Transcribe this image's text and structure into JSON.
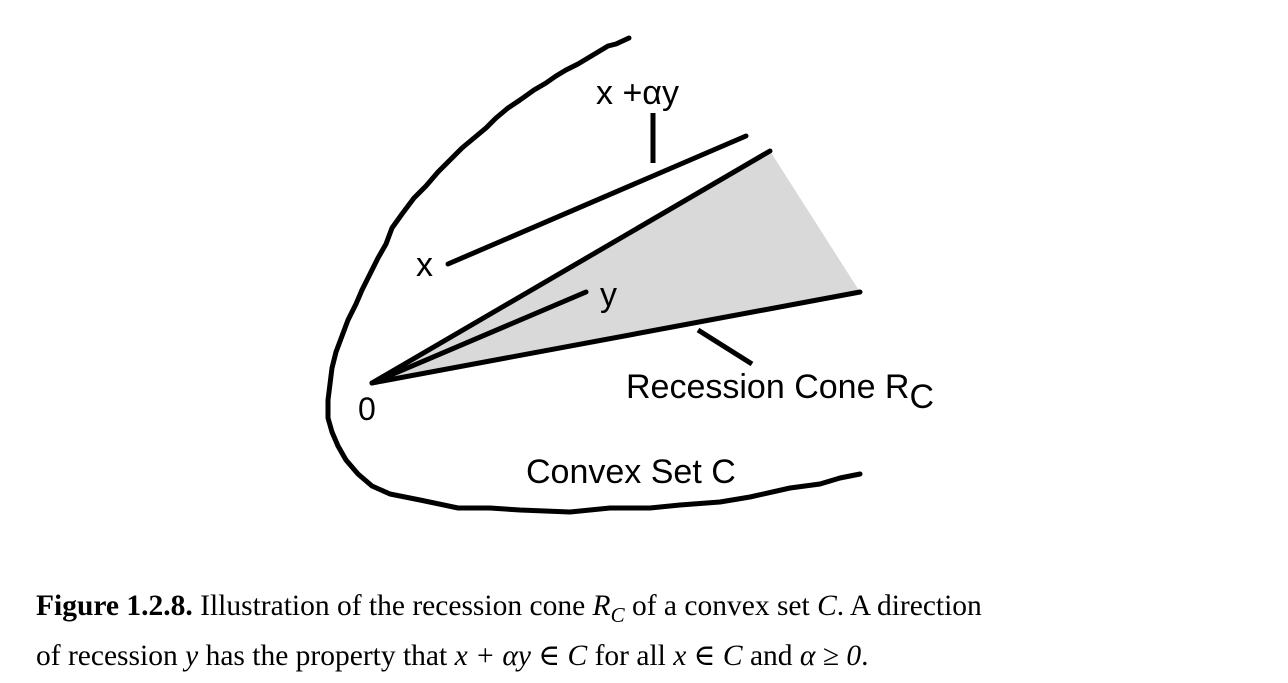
{
  "figure": {
    "labels": {
      "x_plus_alpha_y": "x +αy",
      "x": "x",
      "y": "y",
      "origin": "0",
      "recession_cone_main": "Recession Cone R",
      "recession_cone_sub": "C",
      "convex_set": "Convex Set C"
    },
    "colors": {
      "cone_fill": "#d9d9d9",
      "stroke": "#000000"
    }
  },
  "caption": {
    "figure_number": "Figure 1.2.8.",
    "line1_text1": " Illustration of the recession cone ",
    "rc_main": "R",
    "rc_sub": "C",
    "line1_text2": " of a convex set ",
    "set_c": "C",
    "line1_text3": ". A direction",
    "line2_text1": "of recession ",
    "dir_y": "y",
    "line2_text2": " has the property that ",
    "math_membership": "x + αy ∈ C",
    "line2_text3": " for all ",
    "math_x_in_c": "x ∈ C",
    "line2_text4": " and ",
    "math_alpha": "α ≥ 0",
    "line2_end": "."
  }
}
